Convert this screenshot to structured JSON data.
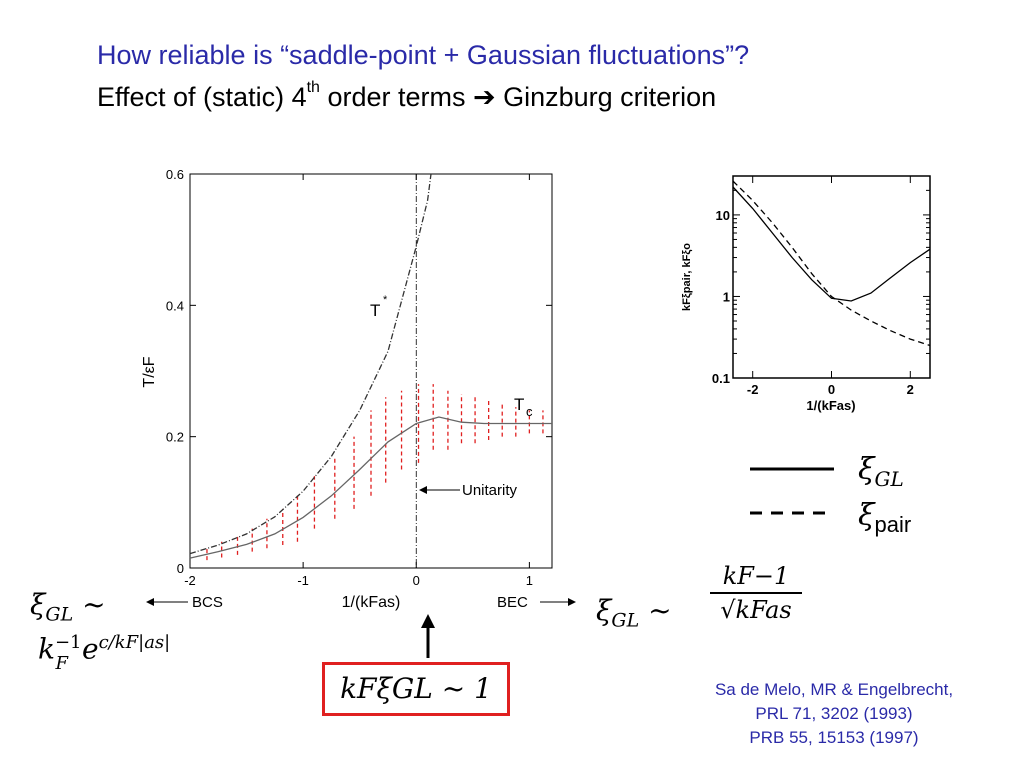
{
  "header": {
    "title_line1": "How reliable is “saddle-point + Gaussian fluctuations”?",
    "title_line2_before": "Effect of (static) 4",
    "title_line2_sup": "th",
    "title_line2_after": " order terms ",
    "title_line2_arrow": "➔",
    "title_line2_end": " Ginzburg criterion"
  },
  "chart_data": [
    {
      "type": "line",
      "title": "",
      "xlabel": "1/(kFas)",
      "ylabel": "T/εF",
      "xlim": [
        -2,
        1.2
      ],
      "ylim": [
        0,
        0.6
      ],
      "x_ticks": [
        "-2",
        "-1",
        "0",
        "1"
      ],
      "y_ticks": [
        "0",
        "0.2",
        "0.4",
        "0.6"
      ],
      "series": [
        {
          "name": "T*",
          "style": "dash-dot",
          "x": [
            -2,
            -1.75,
            -1.5,
            -1.25,
            -1.0,
            -0.75,
            -0.5,
            -0.25,
            0,
            0.1,
            0.13
          ],
          "y": [
            0.022,
            0.035,
            0.052,
            0.078,
            0.117,
            0.17,
            0.24,
            0.33,
            0.49,
            0.56,
            0.6
          ]
        },
        {
          "name": "Tc",
          "style": "solid",
          "x": [
            -2,
            -1.75,
            -1.5,
            -1.25,
            -1.0,
            -0.75,
            -0.5,
            -0.25,
            0,
            0.2,
            0.4,
            0.6,
            0.8,
            1.0,
            1.2
          ],
          "y": [
            0.015,
            0.025,
            0.036,
            0.052,
            0.077,
            0.11,
            0.15,
            0.192,
            0.22,
            0.23,
            0.222,
            0.22,
            0.22,
            0.22,
            0.22
          ]
        }
      ],
      "error_bars_color": "#e02020",
      "error_bars": [
        {
          "x": -1.85,
          "lo": 0.012,
          "hi": 0.031
        },
        {
          "x": -1.72,
          "lo": 0.016,
          "hi": 0.04
        },
        {
          "x": -1.58,
          "lo": 0.02,
          "hi": 0.048
        },
        {
          "x": -1.45,
          "lo": 0.025,
          "hi": 0.06
        },
        {
          "x": -1.32,
          "lo": 0.03,
          "hi": 0.075
        },
        {
          "x": -1.18,
          "lo": 0.035,
          "hi": 0.09
        },
        {
          "x": -1.05,
          "lo": 0.04,
          "hi": 0.11
        },
        {
          "x": -0.9,
          "lo": 0.06,
          "hi": 0.14
        },
        {
          "x": -0.72,
          "lo": 0.075,
          "hi": 0.17
        },
        {
          "x": -0.55,
          "lo": 0.09,
          "hi": 0.2
        },
        {
          "x": -0.4,
          "lo": 0.11,
          "hi": 0.24
        },
        {
          "x": -0.27,
          "lo": 0.13,
          "hi": 0.26
        },
        {
          "x": -0.13,
          "lo": 0.15,
          "hi": 0.27
        },
        {
          "x": 0.02,
          "lo": 0.16,
          "hi": 0.28
        },
        {
          "x": 0.15,
          "lo": 0.18,
          "hi": 0.28
        },
        {
          "x": 0.28,
          "lo": 0.18,
          "hi": 0.27
        },
        {
          "x": 0.4,
          "lo": 0.19,
          "hi": 0.265
        },
        {
          "x": 0.52,
          "lo": 0.19,
          "hi": 0.26
        },
        {
          "x": 0.64,
          "lo": 0.195,
          "hi": 0.255
        },
        {
          "x": 0.76,
          "lo": 0.2,
          "hi": 0.25
        },
        {
          "x": 0.88,
          "lo": 0.2,
          "hi": 0.245
        },
        {
          "x": 1.0,
          "lo": 0.205,
          "hi": 0.24
        },
        {
          "x": 1.12,
          "lo": 0.205,
          "hi": 0.24
        }
      ],
      "annotations": {
        "tstar": "T",
        "tstar_sup": "*",
        "tc_main": "T",
        "tc_sub": "c",
        "unitarity": "Unitarity",
        "bcs": "BCS",
        "bec": "BEC"
      }
    },
    {
      "type": "line",
      "title": "",
      "xlabel": "1/(kFas)",
      "ylabel": "kFξpair, kFξo",
      "xlim": [
        -2.5,
        2.5
      ],
      "ylim": [
        0.1,
        30
      ],
      "y_scale": "log",
      "x_ticks": [
        "-2",
        "0",
        "2"
      ],
      "y_ticks": [
        "0.1",
        "1",
        "10"
      ],
      "series": [
        {
          "name": "ξGL",
          "style": "solid",
          "x": [
            -2.5,
            -2,
            -1.5,
            -1,
            -0.5,
            0,
            0.5,
            1,
            1.5,
            2,
            2.5
          ],
          "y": [
            22,
            12,
            6,
            3,
            1.6,
            0.95,
            0.88,
            1.1,
            1.7,
            2.6,
            3.8
          ]
        },
        {
          "name": "ξpair",
          "style": "dashed",
          "x": [
            -2.5,
            -2,
            -1.5,
            -1,
            -0.5,
            0,
            0.5,
            1,
            1.5,
            2,
            2.5
          ],
          "y": [
            26,
            15,
            8,
            4,
            1.9,
            1.0,
            0.68,
            0.5,
            0.38,
            0.3,
            0.25
          ]
        }
      ]
    }
  ],
  "legend": {
    "solid_label_sym": "ξ",
    "solid_label_sub": "GL",
    "dashed_label_sym": "ξ",
    "dashed_label_sub": "pair"
  },
  "formulas": {
    "left1_sym": "ξ",
    "left1_sub": "GL",
    "left1_rel": " ~",
    "left2_base": "k",
    "left2_sup": "−1",
    "left2_sub": "F",
    "left2_exp_base": "e",
    "left2_exp": "c/kF|as|",
    "right_sym": "ξ",
    "right_sub": "GL",
    "right_rel": " ~",
    "right_num": "kF−1",
    "right_den": "√kFas",
    "boxed": "kFξGL ~ 1"
  },
  "references": {
    "line1": "Sa de Melo, MR & Engelbrecht,",
    "line2": "PRL 71, 3202 (1993)",
    "line3": "PRB 55, 15153 (1997)"
  }
}
